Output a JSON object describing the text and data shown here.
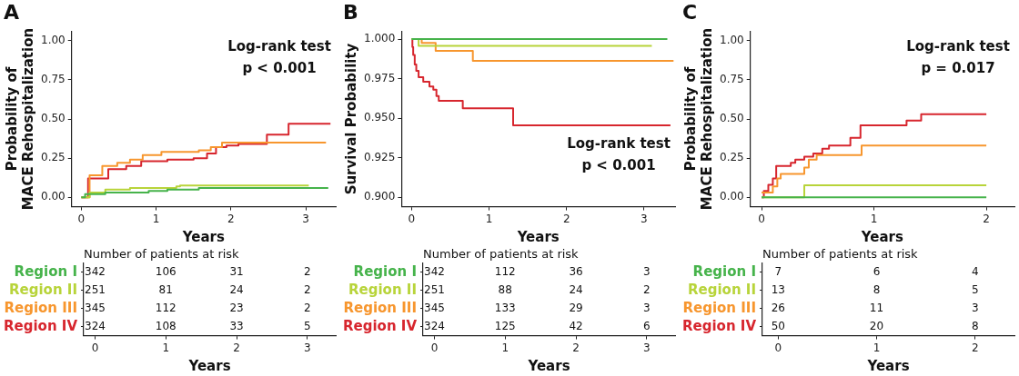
{
  "chart_data": [
    {
      "type": "step",
      "title": "A",
      "xlabel": "Years",
      "ylabel": "Probability of\nMACE Rehospitalization",
      "xlim": [
        -0.13,
        3.4
      ],
      "xticks": [
        0,
        1,
        2,
        3
      ],
      "ylim": [
        -0.06,
        1.06
      ],
      "yticks": [
        {
          "value": 0,
          "label": "0.00"
        },
        {
          "value": 0.25,
          "label": "0.25"
        },
        {
          "value": 0.5,
          "label": "0.50"
        },
        {
          "value": 0.75,
          "label": "0.75"
        },
        {
          "value": 1,
          "label": "1.00"
        }
      ],
      "annotations": [
        "Log-rank test",
        "p < 0.001"
      ],
      "series": [
        {
          "color": "#46b34b",
          "x": [
            0,
            0.05,
            0.32,
            0.9,
            1.15,
            1.57,
            3.3
          ],
          "values": [
            0,
            0.02,
            0.03,
            0.04,
            0.05,
            0.06,
            0.06
          ]
        },
        {
          "color": "#b8d43a",
          "x": [
            0,
            0.11,
            0.32,
            0.65,
            1.27,
            1.32,
            3.04
          ],
          "values": [
            0,
            0.03,
            0.05,
            0.06,
            0.07,
            0.075,
            0.075
          ]
        },
        {
          "color": "#f7962e",
          "x": [
            0,
            0.11,
            0.28,
            0.48,
            0.65,
            0.82,
            1.07,
            1.57,
            1.73,
            1.88,
            3.27
          ],
          "values": [
            0,
            0.14,
            0.2,
            0.22,
            0.24,
            0.27,
            0.29,
            0.3,
            0.32,
            0.35,
            0.35
          ]
        },
        {
          "color": "#d7262e",
          "x": [
            0,
            0.09,
            0.36,
            0.6,
            0.8,
            1.15,
            1.5,
            1.68,
            1.8,
            1.94,
            2.1,
            2.48,
            2.77,
            3.33
          ],
          "values": [
            0,
            0.12,
            0.18,
            0.2,
            0.23,
            0.24,
            0.25,
            0.28,
            0.32,
            0.33,
            0.34,
            0.4,
            0.47,
            0.47
          ]
        }
      ]
    },
    {
      "type": "step",
      "title": "B",
      "xlabel": "Years",
      "ylabel": "Survival Probability",
      "xlim": [
        -0.13,
        3.4
      ],
      "xticks": [
        0,
        1,
        2,
        3
      ],
      "ylim": [
        0.894,
        1.005
      ],
      "yticks": [
        {
          "value": 0.9,
          "label": "0.900"
        },
        {
          "value": 0.925,
          "label": "0.925"
        },
        {
          "value": 0.95,
          "label": "0.950"
        },
        {
          "value": 0.975,
          "label": "0.975"
        },
        {
          "value": 1,
          "label": "1.000"
        }
      ],
      "annotations": [
        "Log-rank test",
        "p < 0.001"
      ],
      "series": [
        {
          "color": "#46b34b",
          "x": [
            0,
            3.3
          ],
          "values": [
            1,
            1
          ]
        },
        {
          "color": "#b8d43a",
          "x": [
            0,
            0.09,
            3.1
          ],
          "values": [
            1,
            0.9958,
            0.9958
          ]
        },
        {
          "color": "#f7962e",
          "x": [
            0,
            0.13,
            0.31,
            0.79,
            3.38
          ],
          "values": [
            1,
            0.9976,
            0.9926,
            0.9862,
            0.9862
          ]
        },
        {
          "color": "#d7262e",
          "x": [
            0,
            0.01,
            0.02,
            0.04,
            0.06,
            0.09,
            0.15,
            0.23,
            0.28,
            0.32,
            0.35,
            0.66,
            1.31,
            3.34
          ],
          "values": [
            1,
            0.995,
            0.99,
            0.984,
            0.98,
            0.976,
            0.973,
            0.97,
            0.968,
            0.964,
            0.961,
            0.9563,
            0.9455,
            0.9455
          ]
        }
      ]
    },
    {
      "type": "step",
      "title": "C",
      "xlabel": "Years",
      "ylabel": "Probability of\nMACE Rehospitalization",
      "xlim": [
        -0.1,
        2.25
      ],
      "xticks": [
        0,
        1,
        2
      ],
      "ylim": [
        -0.06,
        1.06
      ],
      "yticks": [
        {
          "value": 0,
          "label": "0.00"
        },
        {
          "value": 0.25,
          "label": "0.25"
        },
        {
          "value": 0.5,
          "label": "0.50"
        },
        {
          "value": 0.75,
          "label": "0.75"
        },
        {
          "value": 1,
          "label": "1.00"
        }
      ],
      "annotations": [
        "Log-rank test",
        "p = 0.017"
      ],
      "series": [
        {
          "color": "#46b34b",
          "x": [
            0,
            2
          ],
          "values": [
            0,
            0
          ]
        },
        {
          "color": "#b8d43a",
          "x": [
            0,
            0.38,
            2
          ],
          "values": [
            0,
            0.077,
            0.077
          ]
        },
        {
          "color": "#f7962e",
          "x": [
            0,
            0.1,
            0.14,
            0.17,
            0.38,
            0.42,
            0.49,
            0.89,
            2
          ],
          "values": [
            0.03,
            0.07,
            0.12,
            0.15,
            0.19,
            0.24,
            0.27,
            0.33,
            0.33
          ]
        },
        {
          "color": "#d7262e",
          "x": [
            0,
            0.02,
            0.06,
            0.1,
            0.13,
            0.26,
            0.3,
            0.38,
            0.46,
            0.54,
            0.6,
            0.79,
            0.88,
            1.29,
            1.42,
            2
          ],
          "values": [
            0,
            0.04,
            0.08,
            0.12,
            0.2,
            0.22,
            0.24,
            0.26,
            0.28,
            0.31,
            0.33,
            0.38,
            0.46,
            0.49,
            0.53,
            0.53
          ]
        }
      ]
    },
    {
      "type": "heatmap",
      "title": "Number of patients at risk",
      "xlabel": "Years",
      "categories": [
        "0",
        "1",
        "2",
        "3"
      ],
      "y_categories": [
        "Region I",
        "Region II",
        "Region III",
        "Region IV"
      ],
      "colors": [
        "#46b34b",
        "#b8d43a",
        "#f7962e",
        "#d7262e"
      ],
      "data_labels": true,
      "cells": [
        [
          342,
          106,
          31,
          2
        ],
        [
          251,
          81,
          24,
          2
        ],
        [
          345,
          112,
          23,
          2
        ],
        [
          324,
          108,
          33,
          5
        ]
      ]
    },
    {
      "type": "heatmap",
      "title": "Number of patients at risk",
      "xlabel": "Years",
      "categories": [
        "0",
        "1",
        "2",
        "3"
      ],
      "y_categories": [
        "Region I",
        "Region II",
        "Region III",
        "Region IV"
      ],
      "colors": [
        "#46b34b",
        "#b8d43a",
        "#f7962e",
        "#d7262e"
      ],
      "data_labels": true,
      "cells": [
        [
          342,
          112,
          36,
          3
        ],
        [
          251,
          88,
          24,
          2
        ],
        [
          345,
          133,
          29,
          3
        ],
        [
          324,
          125,
          42,
          6
        ]
      ]
    },
    {
      "type": "heatmap",
      "title": "Number of patients at risk",
      "xlabel": "Years",
      "categories": [
        "0",
        "1",
        "2"
      ],
      "y_categories": [
        "Region I",
        "Region II",
        "Region III",
        "Region IV"
      ],
      "colors": [
        "#46b34b",
        "#b8d43a",
        "#f7962e",
        "#d7262e"
      ],
      "data_labels": true,
      "cells": [
        [
          7,
          6,
          4
        ],
        [
          13,
          8,
          5
        ],
        [
          26,
          11,
          3
        ],
        [
          50,
          20,
          8
        ]
      ]
    }
  ]
}
